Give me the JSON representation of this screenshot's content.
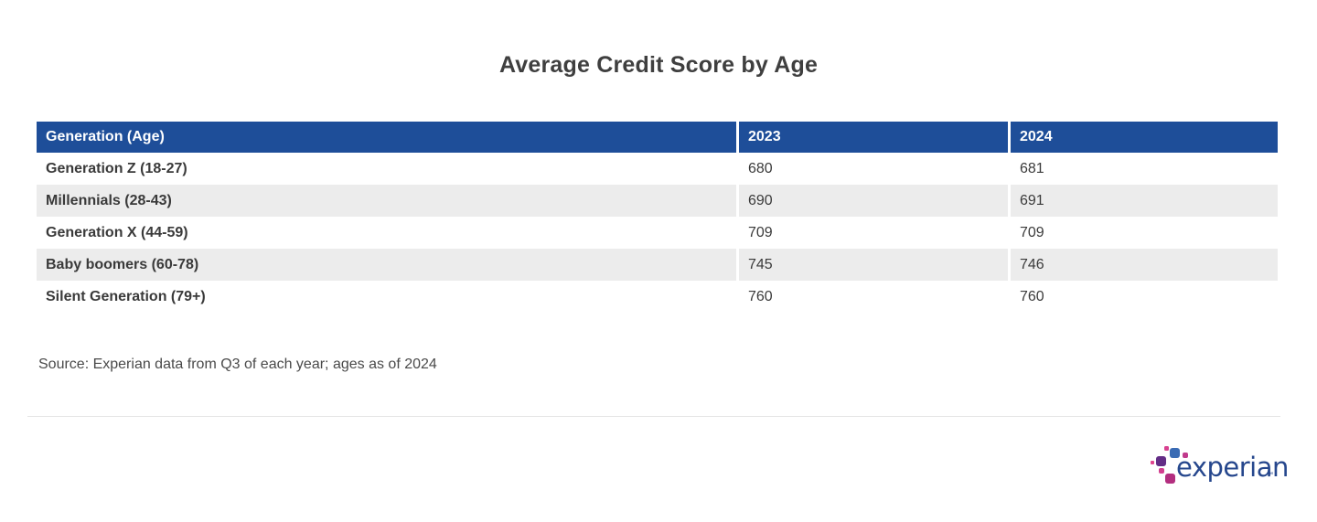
{
  "title": "Average Credit Score by Age",
  "table": {
    "columns": {
      "generation": "Generation (Age)",
      "y2023": "2023",
      "y2024": "2024"
    },
    "rows": [
      {
        "label": "Generation Z (18-27)",
        "y2023": "680",
        "y2024": "681"
      },
      {
        "label": "Millennials (28-43)",
        "y2023": "690",
        "y2024": "691"
      },
      {
        "label": "Generation X (44-59)",
        "y2023": "709",
        "y2024": "709"
      },
      {
        "label": "Baby boomers (60-78)",
        "y2023": "745",
        "y2024": "746"
      },
      {
        "label": "Silent Generation (79+)",
        "y2023": "760",
        "y2024": "760"
      }
    ]
  },
  "source": "Source: Experian data from Q3 of each year; ages as of 2024",
  "logo": {
    "text": "experian",
    "trademark": "™"
  },
  "colors": {
    "header_bg": "#1e4e99",
    "row_alt_bg": "#ececec",
    "title_text": "#3f3f3f",
    "body_text": "#3a3a3a",
    "logo_text": "#26478d",
    "logo_blue": "#3a6bb4",
    "logo_purple": "#632d86",
    "logo_magenta": "#b32e7f",
    "logo_pink": "#d84190"
  },
  "chart_data": {
    "type": "table",
    "title": "Average Credit Score by Age",
    "categories": [
      "Generation Z (18-27)",
      "Millennials (28-43)",
      "Generation X (44-59)",
      "Baby boomers (60-78)",
      "Silent Generation (79+)"
    ],
    "series": [
      {
        "name": "2023",
        "values": [
          680,
          690,
          709,
          745,
          760
        ]
      },
      {
        "name": "2024",
        "values": [
          681,
          691,
          709,
          746,
          760
        ]
      }
    ],
    "source": "Source: Experian data from Q3 of each year; ages as of 2024",
    "layout": "zebra-striped table, blue header row, first column bold labels"
  }
}
